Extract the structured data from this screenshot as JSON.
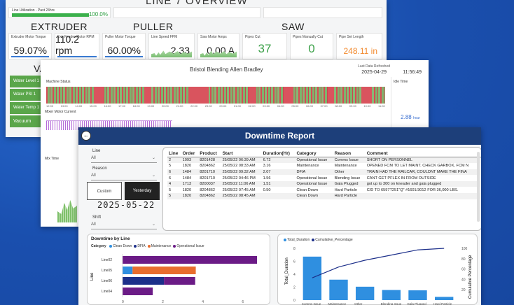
{
  "window1": {
    "title": "LINE 7 OVERVIEW",
    "utilization": {
      "label": "Line Utilization - Past 24hrs",
      "fraction": 1.0,
      "value": "100.0%"
    },
    "sections": [
      "EXTRUDER",
      "PULLER",
      "SAW"
    ],
    "metrics": [
      {
        "label": "Extruder Motor Torque",
        "value": "59.07%",
        "color": "#222222"
      },
      {
        "label": "Ext. Feeder Motor RPM",
        "value": "110.2 rpm",
        "color": "#222222"
      },
      {
        "label": "Puller Motor Torque",
        "value": "60.00%",
        "color": "#222222"
      },
      {
        "label": "Line Speed FPM",
        "value": "2.33",
        "color": "#222222"
      },
      {
        "label": "Saw Motor Amps",
        "value": "0.00 A",
        "color": "#222222"
      },
      {
        "label": "Pipes Cut",
        "value": "37",
        "color": "#3aa047"
      },
      {
        "label": "Pipes Manually Cut",
        "value": "0",
        "color": "#3aa047"
      },
      {
        "label": "Pipe Set Length",
        "value": "248.11 in",
        "color": "#f28a2e"
      }
    ],
    "side_items": [
      "Water Level 1",
      "Water PSI 1",
      "Water Temp 1",
      "Vacuum"
    ],
    "va_label": "VA"
  },
  "window2": {
    "title": "Bristol Blending Allen Bradley",
    "refresh_label": "Last Data Refreshed",
    "refresh_date": "2025-04-29",
    "refresh_time": "11:56:49",
    "machine_status_label": "Machine Status",
    "time_ticks": [
      "12:00",
      "13:00",
      "14:00",
      "15:00",
      "16:00",
      "17:00",
      "18:00",
      "19:00",
      "20:00",
      "21:00",
      "22:00",
      "23:00",
      "00:00",
      "01:00",
      "02:00",
      "03:00",
      "04:00",
      "05:00",
      "06:00",
      "07:00",
      "08:00",
      "09:00",
      "10:00",
      "11:00"
    ],
    "mixer_current_label": "Mixer Motor Current",
    "mix_time_label": "Mix Time",
    "idle_label": "Idle Time",
    "idle_value": "2.88",
    "idle_unit": "hour"
  },
  "downtime": {
    "title": "Downtime Report",
    "filters": {
      "line_label": "Line",
      "line_value": "All",
      "reason_label": "Reason",
      "reason_value": "All",
      "shift_label": "Shift",
      "shift_value": "All"
    },
    "custom_label": "Custom",
    "yesterday_label": "Yesterday",
    "date": "2025-05-22",
    "table_headers": [
      "Line",
      "Order",
      "Product",
      "Start",
      "Duration(Hr)",
      "Category",
      "Reason",
      "Comment"
    ],
    "rows": [
      [
        "2",
        "1093",
        "8201428",
        "25/05/22 06:39 AM",
        "6.72",
        "Operational Issue",
        "Comms Issue",
        "SHORT ON PERSONNEL"
      ],
      [
        "5",
        "1820",
        "8204862",
        "25/05/22 08:33 AM",
        "3.16",
        "Maintenance",
        "Maintenance",
        "OPENED FCM TO LET MAINT. CHECK GARBOX, FCM N"
      ],
      [
        "6",
        "1484",
        "8201710",
        "25/05/22 09:32 AM",
        "2.07",
        "DFIA",
        "Other",
        "TRAIN HAD THE RAILCAR, COULDNT MAKE THE FINA"
      ],
      [
        "6",
        "1484",
        "8201710",
        "25/05/22 04:46 PM",
        "1.56",
        "Operational Issue",
        "Blending Issue",
        "CANT GET PFLEX IN FROM OUTSIDE"
      ],
      [
        "4",
        "1713",
        "8200037",
        "25/05/22 11:06 AM",
        "1.51",
        "Operational Issue",
        "Gala Plugged",
        "got up to 300 on kneader and gala plugged"
      ],
      [
        "5",
        "1820",
        "8204862",
        "25/05/22 07:45 AM",
        "0.50",
        "Clean Down",
        "Hard Particle",
        "C/D TO 6597T251\"Q\" #1601/3012 FOR 36,000 LBS."
      ],
      [
        "5",
        "1820",
        "8204862",
        "25/05/22 08:45 AM",
        "",
        "Clean Down",
        "Hard Particle",
        ""
      ]
    ],
    "by_line": {
      "title": "Downtime by Line",
      "legend_title": "Category",
      "categories": [
        {
          "name": "Clean Down",
          "color": "#2f8fe0"
        },
        {
          "name": "DFIA",
          "color": "#1c2f8a"
        },
        {
          "name": "Maintenance",
          "color": "#e86d2e"
        },
        {
          "name": "Operational Issue",
          "color": "#6b1b86"
        }
      ],
      "y_label": "Line",
      "rows": [
        "Line02",
        "Line05",
        "Line06",
        "Line04"
      ],
      "ticks": [
        "0",
        "2",
        "4",
        "6"
      ]
    },
    "pareto": {
      "legend": [
        {
          "name": "Total_Duration",
          "color": "#2f8fe0"
        },
        {
          "name": "Cumulative_Percentage",
          "color": "#1c2f8a"
        }
      ],
      "y_left_label": "Total_Duration",
      "y_right_label": "Cumulative Percentage",
      "left_ticks": [
        "8",
        "6",
        "4",
        "2",
        "0"
      ],
      "right_ticks": [
        "100",
        "80",
        "60",
        "40",
        "20"
      ],
      "bar_colors": "#2f8fe0"
    }
  },
  "chart_data": [
    {
      "type": "bar",
      "title": "Downtime by Line",
      "orientation": "horizontal",
      "ylabel": "Line",
      "categories": [
        "Line02",
        "Line05",
        "Line06",
        "Line04"
      ],
      "series": [
        {
          "name": "Clean Down",
          "values": [
            0,
            0.5,
            0,
            0
          ]
        },
        {
          "name": "DFIA",
          "values": [
            0,
            0,
            2.07,
            0
          ]
        },
        {
          "name": "Maintenance",
          "values": [
            0,
            3.16,
            0,
            0
          ]
        },
        {
          "name": "Operational Issue",
          "values": [
            6.72,
            0,
            1.56,
            1.51
          ]
        }
      ],
      "xlim": [
        0,
        7
      ]
    },
    {
      "type": "bar",
      "title": "",
      "categories": [
        "Comms Issue",
        "Maintenance",
        "Other",
        "Blending Issue",
        "Gala Plugged",
        "Hard Particle"
      ],
      "series": [
        {
          "name": "Total_Duration",
          "values": [
            6.72,
            3.16,
            2.07,
            1.56,
            1.51,
            0.5
          ]
        },
        {
          "name": "Cumulative_Percentage",
          "values": [
            43,
            64,
            77,
            87,
            97,
            100
          ]
        }
      ],
      "ylabel": "Total_Duration",
      "ylim": [
        0,
        8
      ],
      "y2label": "Cumulative Percentage",
      "y2lim": [
        0,
        100
      ]
    }
  ]
}
